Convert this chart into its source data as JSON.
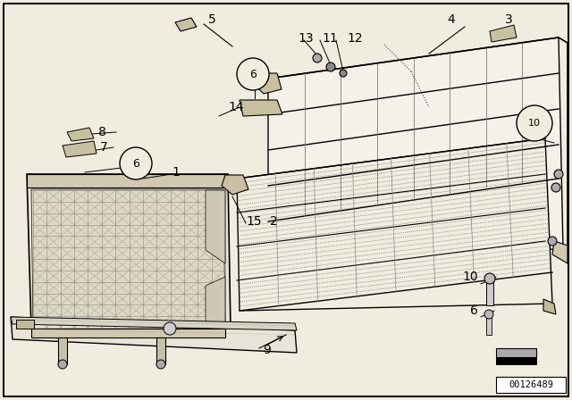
{
  "bg_color": "#f0ede0",
  "border_color": "#000000",
  "part_number": "00126489",
  "fig_width": 6.4,
  "fig_height": 4.48,
  "dpi": 100
}
